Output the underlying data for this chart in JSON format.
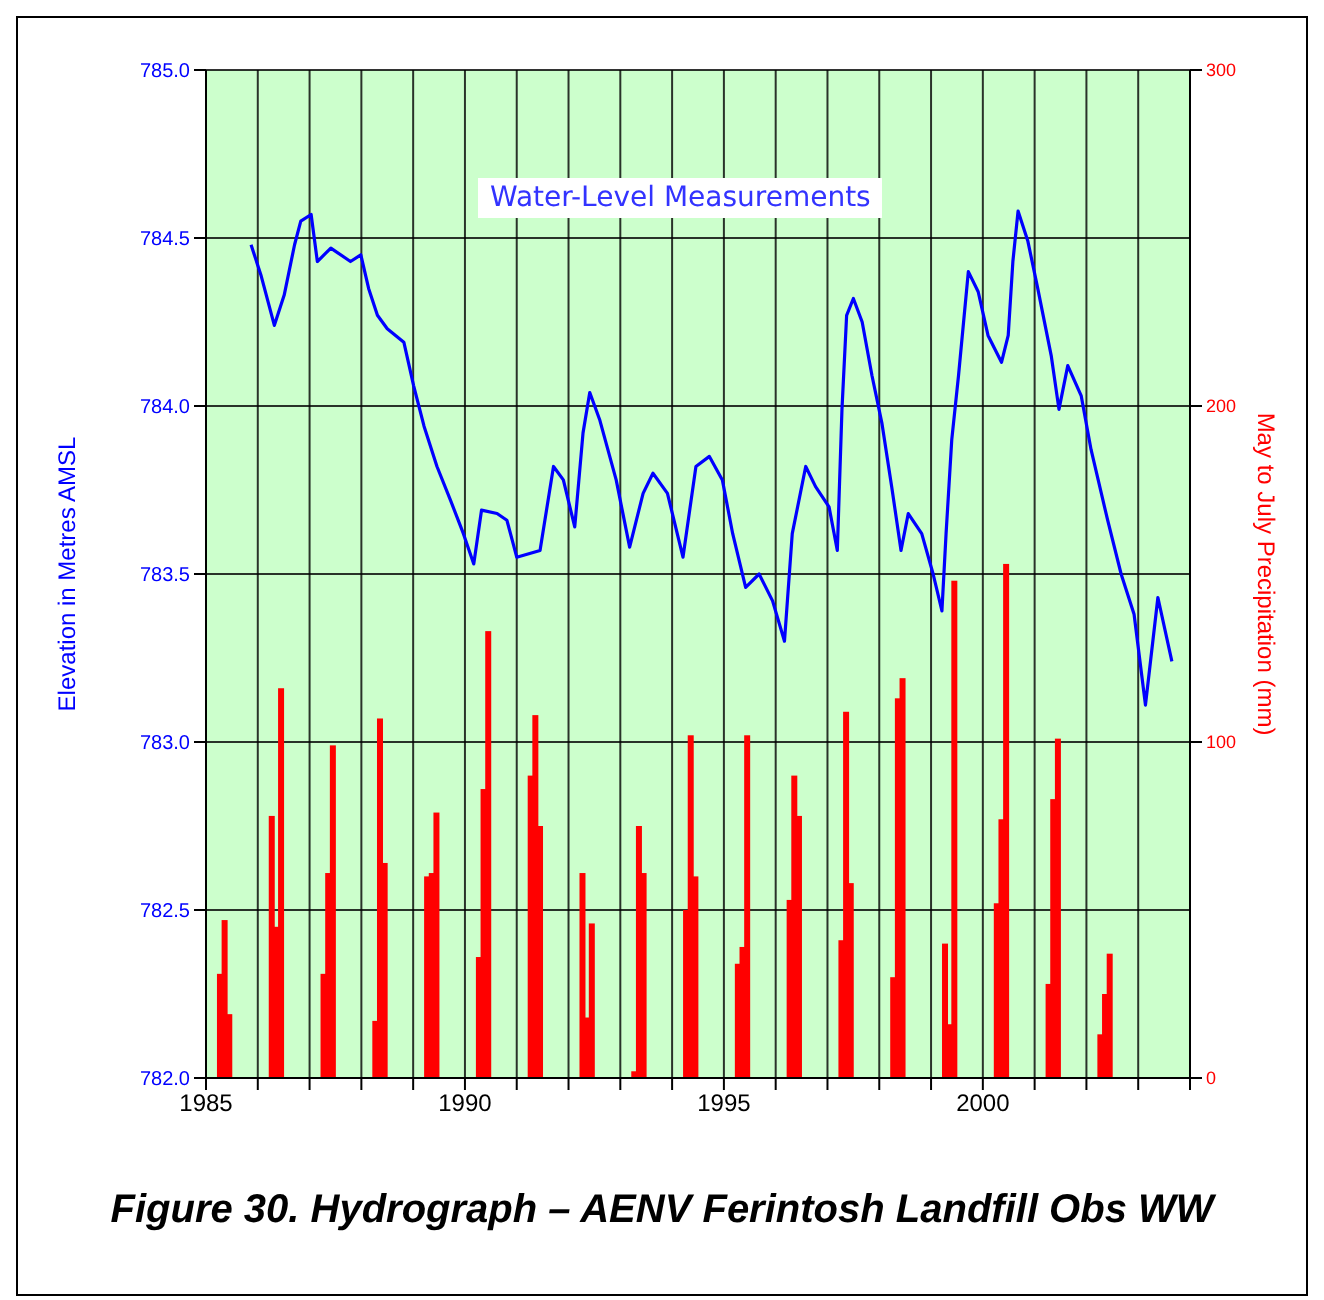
{
  "chart_data": {
    "type": "line",
    "title": "Water-Level Measurements",
    "ylabel": "Elevation in Metres AMSL",
    "y2label": "May to July Precipitation (mm)",
    "annotations": [
      "Figure 30. Hydrograph – AENV Ferintosh Landfill Obs WW"
    ],
    "xlim": [
      1985,
      2004
    ],
    "xticks": [
      1985,
      {
        "value": 1986,
        "label": null
      },
      {
        "value": 1987,
        "label": null
      },
      {
        "value": 1988,
        "label": null
      },
      {
        "value": 1989,
        "label": null
      },
      1990,
      {
        "value": 1991,
        "label": null
      },
      {
        "value": 1992,
        "label": null
      },
      {
        "value": 1993,
        "label": null
      },
      {
        "value": 1994,
        "label": null
      },
      1995,
      {
        "value": 1996,
        "label": null
      },
      {
        "value": 1997,
        "label": null
      },
      {
        "value": 1998,
        "label": null
      },
      {
        "value": 1999,
        "label": null
      },
      2000,
      {
        "value": 2001,
        "label": null
      },
      {
        "value": 2002,
        "label": null
      },
      {
        "value": 2003,
        "label": null
      },
      {
        "value": 2004,
        "label": null
      }
    ],
    "ylim": [
      782,
      785
    ],
    "yticks": [
      {
        "value": 782,
        "label": "782.0"
      },
      {
        "value": 782.5,
        "label": "782.5"
      },
      {
        "value": 783,
        "label": "783.0"
      },
      {
        "value": 783.5,
        "label": "783.5"
      },
      {
        "value": 784,
        "label": "784.0"
      },
      {
        "value": 784.5,
        "label": "784.5"
      },
      {
        "value": 785,
        "label": "785.0"
      }
    ],
    "y2lim": [
      0,
      300
    ],
    "y2ticks": [
      0,
      100,
      200,
      300
    ],
    "grid": true,
    "marker": "none",
    "line_style": "solid",
    "series": [
      {
        "color": "#0000ff",
        "x": [
          1985.87,
          1986.06,
          1986.32,
          1986.51,
          1986.71,
          1986.83,
          1987.03,
          1987.15,
          1987.41,
          1987.79,
          1987.99,
          1988.14,
          1988.31,
          1988.5,
          1988.82,
          1989.01,
          1989.21,
          1989.46,
          1989.72,
          1989.97,
          1990.17,
          1990.32,
          1990.62,
          1990.81,
          1991.0,
          1991.45,
          1991.71,
          1991.9,
          1992.12,
          1992.28,
          1992.41,
          1992.6,
          1992.92,
          1993.18,
          1993.44,
          1993.63,
          1993.91,
          1994.21,
          1994.46,
          1994.72,
          1994.97,
          1995.17,
          1995.42,
          1995.68,
          1995.94,
          1996.17,
          1996.32,
          1996.58,
          1996.77,
          1997.03,
          1997.19,
          1997.28,
          1997.37,
          1997.5,
          1997.67,
          1997.86,
          1998.05,
          1998.24,
          1998.42,
          1998.56,
          1998.82,
          1999.04,
          1999.21,
          1999.29,
          1999.4,
          1999.53,
          1999.72,
          1999.91,
          2000.1,
          2000.36,
          2000.49,
          2000.58,
          2000.68,
          2000.87,
          2001.06,
          2001.32,
          2001.47,
          2001.64,
          2001.9,
          2002.09,
          2002.41,
          2002.67,
          2002.92,
          2003.14,
          2003.38,
          2003.65
        ],
        "values": [
          784.48,
          784.39,
          784.24,
          784.33,
          784.48,
          784.55,
          784.57,
          784.43,
          784.47,
          784.43,
          784.45,
          784.35,
          784.27,
          784.23,
          784.19,
          784.06,
          783.94,
          783.82,
          783.72,
          783.62,
          783.53,
          783.69,
          783.68,
          783.66,
          783.55,
          783.57,
          783.82,
          783.78,
          783.64,
          783.92,
          784.04,
          783.96,
          783.78,
          783.58,
          783.74,
          783.8,
          783.74,
          783.55,
          783.82,
          783.85,
          783.78,
          783.62,
          783.46,
          783.5,
          783.42,
          783.3,
          783.62,
          783.82,
          783.76,
          783.7,
          783.57,
          783.99,
          784.27,
          784.32,
          784.25,
          784.09,
          783.95,
          783.76,
          783.57,
          783.68,
          783.62,
          783.5,
          783.39,
          783.62,
          783.9,
          784.09,
          784.4,
          784.34,
          784.21,
          784.13,
          784.21,
          784.43,
          784.58,
          784.49,
          784.35,
          784.15,
          783.99,
          784.12,
          784.03,
          783.87,
          783.66,
          783.5,
          783.38,
          783.11,
          783.43,
          783.24
        ]
      },
      {
        "type": "bar",
        "axis": "y2",
        "color": "#ff0000",
        "x": [
          1985.27,
          1985.36,
          1985.45,
          1986.27,
          1986.36,
          1986.45,
          1987.27,
          1987.36,
          1987.45,
          1988.27,
          1988.36,
          1988.45,
          1989.27,
          1989.36,
          1989.45,
          1990.27,
          1990.36,
          1990.45,
          1991.27,
          1991.36,
          1991.45,
          1992.27,
          1992.36,
          1992.45,
          1993.27,
          1993.36,
          1993.45,
          1994.27,
          1994.36,
          1994.45,
          1995.27,
          1995.36,
          1995.45,
          1996.27,
          1996.36,
          1996.45,
          1997.27,
          1997.36,
          1997.45,
          1998.27,
          1998.36,
          1998.45,
          1999.27,
          1999.36,
          1999.45,
          2000.27,
          2000.36,
          2000.45,
          2001.27,
          2001.36,
          2001.45,
          2002.27,
          2002.36,
          2002.45
        ],
        "values": [
          31,
          47,
          19,
          78,
          45,
          116,
          31,
          61,
          99,
          17,
          107,
          64,
          60,
          61,
          79,
          36,
          86,
          133,
          90,
          108,
          75,
          61,
          18,
          46,
          2,
          75,
          61,
          50,
          102,
          60,
          34,
          39,
          102,
          53,
          90,
          78,
          41,
          109,
          58,
          30,
          113,
          119,
          40,
          16,
          148,
          52,
          77,
          153,
          28,
          83,
          101,
          13,
          25,
          37
        ]
      }
    ]
  }
}
